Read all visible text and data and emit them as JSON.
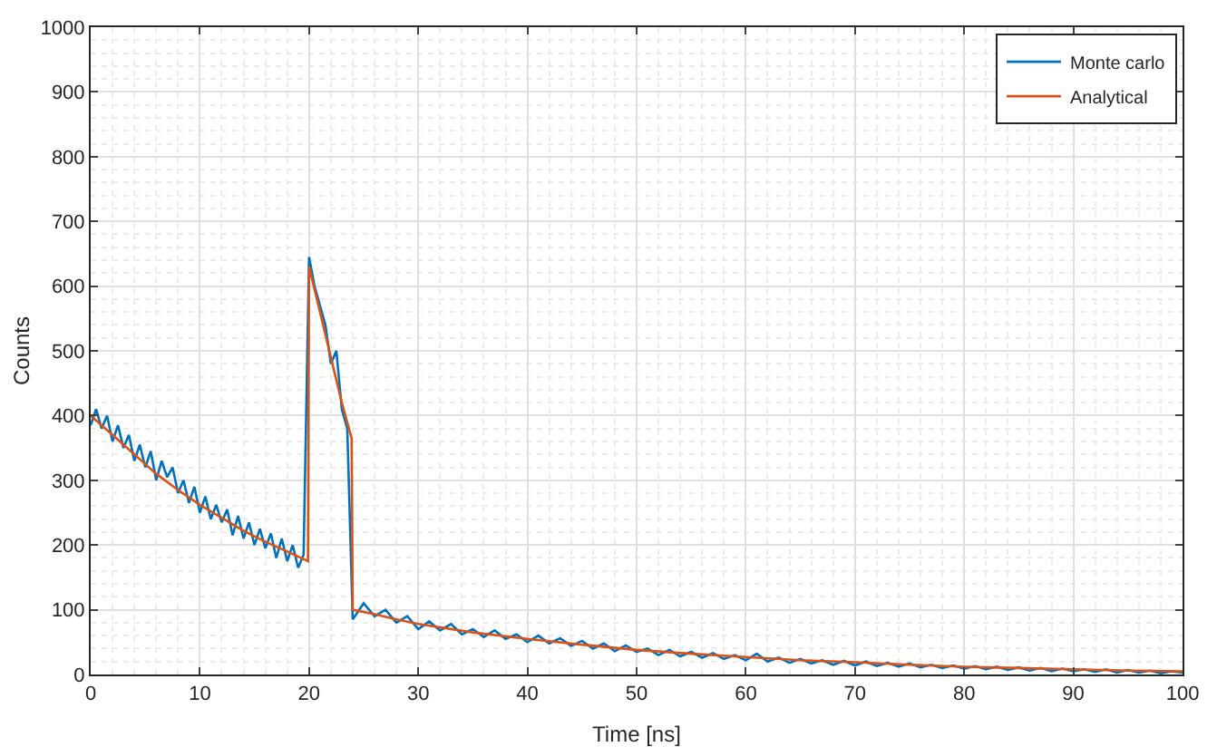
{
  "chart_data": {
    "type": "line",
    "xlabel": "Time [ns]",
    "ylabel": "Counts",
    "xlim": [
      0,
      100
    ],
    "xticks": [
      0,
      10,
      20,
      30,
      40,
      50,
      60,
      70,
      80,
      90,
      100
    ],
    "ylim": [
      0,
      1000
    ],
    "yticks": [
      0,
      100,
      200,
      300,
      400,
      500,
      600,
      700,
      800,
      900,
      1000
    ],
    "grid": true,
    "legend": "top right",
    "marker": "none",
    "line_style": "solid",
    "series": [
      {
        "name": "Monte carlo",
        "color": "#0072bd",
        "x": [
          0,
          0.5,
          1,
          1.5,
          2,
          2.5,
          3,
          3.5,
          4,
          4.5,
          5,
          5.5,
          6,
          6.5,
          7,
          7.5,
          8,
          8.5,
          9,
          9.5,
          10,
          10.5,
          11,
          11.5,
          12,
          12.5,
          13,
          13.5,
          14,
          14.5,
          15,
          15.5,
          16,
          16.5,
          17,
          17.5,
          18,
          18.5,
          19,
          19.5,
          20,
          20.5,
          21,
          21.5,
          22,
          22.5,
          23,
          23.5,
          24,
          25,
          26,
          27,
          28,
          29,
          30,
          31,
          32,
          33,
          34,
          35,
          36,
          37,
          38,
          39,
          40,
          41,
          42,
          43,
          44,
          45,
          46,
          47,
          48,
          49,
          50,
          51,
          52,
          53,
          54,
          55,
          56,
          57,
          58,
          59,
          60,
          61,
          62,
          63,
          64,
          65,
          66,
          67,
          68,
          69,
          70,
          71,
          72,
          73,
          74,
          75,
          76,
          77,
          78,
          79,
          80,
          81,
          82,
          83,
          84,
          85,
          86,
          87,
          88,
          89,
          90,
          91,
          92,
          93,
          94,
          95,
          96,
          97,
          98,
          99,
          100
        ],
        "values": [
          385,
          410,
          380,
          400,
          360,
          385,
          350,
          370,
          330,
          355,
          320,
          345,
          300,
          330,
          305,
          320,
          280,
          300,
          265,
          290,
          250,
          275,
          240,
          262,
          235,
          255,
          215,
          245,
          210,
          235,
          200,
          225,
          195,
          218,
          180,
          210,
          175,
          200,
          165,
          185,
          645,
          600,
          570,
          540,
          480,
          500,
          410,
          380,
          85,
          110,
          90,
          100,
          80,
          90,
          70,
          82,
          68,
          78,
          62,
          70,
          58,
          68,
          55,
          62,
          50,
          60,
          48,
          56,
          44,
          52,
          40,
          48,
          36,
          45,
          35,
          40,
          30,
          38,
          28,
          35,
          26,
          33,
          24,
          30,
          22,
          32,
          20,
          26,
          18,
          24,
          17,
          22,
          15,
          21,
          14,
          20,
          13,
          18,
          12,
          17,
          11,
          15,
          10,
          14,
          9,
          13,
          8,
          12,
          7,
          11,
          6,
          10,
          5,
          9,
          5,
          8,
          4,
          8,
          3,
          7,
          3,
          6,
          2,
          5,
          3
        ]
      },
      {
        "name": "Analytical",
        "color": "#d95319",
        "x": [
          0,
          2,
          4,
          6,
          8,
          10,
          12,
          14,
          16,
          18,
          19.9,
          20,
          21,
          22,
          23,
          23.9,
          24,
          26,
          28,
          30,
          35,
          40,
          45,
          50,
          55,
          60,
          65,
          70,
          75,
          80,
          85,
          90,
          95,
          100
        ],
        "values": [
          400,
          370,
          340,
          310,
          285,
          262,
          242,
          222,
          205,
          190,
          175,
          630,
          560,
          490,
          420,
          365,
          100,
          93,
          85,
          78,
          65,
          55,
          46,
          38,
          32,
          27,
          22,
          19,
          15,
          12,
          10,
          8,
          6,
          5
        ]
      }
    ]
  }
}
